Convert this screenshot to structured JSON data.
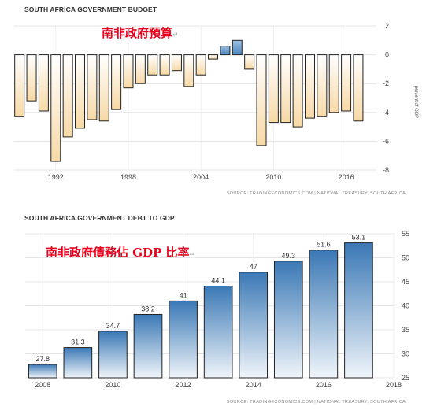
{
  "budget": {
    "title": "SOUTH AFRICA GOVERNMENT BUDGET",
    "annotation": "南非政府預算",
    "source": "SOURCE: TRADINGECONOMICS.COM | NATIONAL TREASURY, SOUTH AFRICA"
  },
  "debt": {
    "title": "SOUTH AFRICA GOVERNMENT DEBT TO GDP",
    "annotation": "南非政府債務佔 GDP 比率",
    "source": "SOURCE: TRADINGECONOMICS.COM | NATIONAL TREASURY, SOUTH AFRICA"
  },
  "chart_data": [
    {
      "type": "bar",
      "title": "SOUTH AFRICA GOVERNMENT BUDGET",
      "ylabel": "percent of GDP",
      "xlim": [
        1988.5,
        2018.5
      ],
      "ylim": [
        -8,
        2
      ],
      "yticks": [
        2,
        0,
        -2,
        -4,
        -6,
        -8
      ],
      "xticks": [
        1992,
        1998,
        2004,
        2010,
        2016
      ],
      "axis_side": "right",
      "grid": true,
      "fill_positive": "#4a86c0",
      "fill_negative": "#f7d9a6",
      "x": [
        1989,
        1990,
        1991,
        1992,
        1993,
        1994,
        1995,
        1996,
        1997,
        1998,
        1999,
        2000,
        2001,
        2002,
        2003,
        2004,
        2005,
        2006,
        2007,
        2008,
        2009,
        2010,
        2011,
        2012,
        2013,
        2014,
        2015,
        2016,
        2017
      ],
      "values": [
        -4.3,
        -3.2,
        -3.9,
        -7.4,
        -5.7,
        -5.1,
        -4.5,
        -4.6,
        -3.8,
        -2.3,
        -2.0,
        -1.4,
        -1.4,
        -1.1,
        -2.2,
        -1.4,
        -0.3,
        0.6,
        1.0,
        -1.0,
        -6.3,
        -4.7,
        -4.7,
        -5.0,
        -4.4,
        -4.3,
        -4.0,
        -3.9,
        -4.6
      ]
    },
    {
      "type": "bar",
      "title": "SOUTH AFRICA GOVERNMENT DEBT TO GDP",
      "xlim": [
        2007.5,
        2018
      ],
      "ylim": [
        25,
        55
      ],
      "yticks": [
        55,
        50,
        45,
        40,
        35,
        30,
        25
      ],
      "xticks": [
        2008,
        2010,
        2012,
        2014,
        2016,
        2018
      ],
      "axis_side": "right",
      "grid": true,
      "fill_top": "#3a78b5",
      "fill_bottom": "#f0f5fa",
      "x": [
        2008,
        2009,
        2010,
        2011,
        2012,
        2013,
        2014,
        2015,
        2016,
        2017
      ],
      "values": [
        27.8,
        31.3,
        34.7,
        38.2,
        41,
        44.1,
        47,
        49.3,
        51.6,
        53.1
      ],
      "data_labels": [
        "27.8",
        "31.3",
        "34.7",
        "38.2",
        "41",
        "44.1",
        "47",
        "49.3",
        "51.6",
        "53.1"
      ]
    }
  ]
}
